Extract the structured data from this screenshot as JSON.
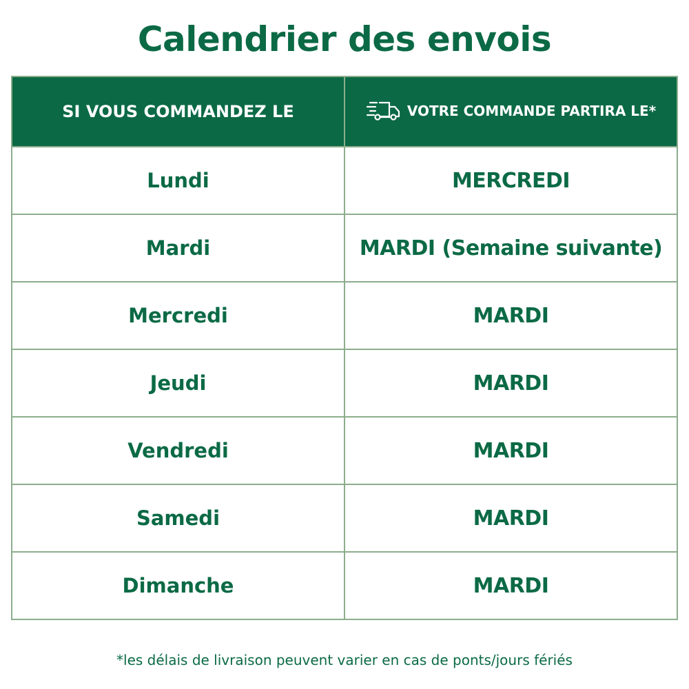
{
  "title": "Calendrier des envois",
  "header": {
    "col1": "SI VOUS COMMANDEZ LE",
    "col2": "VOTRE COMMANDE PARTIRA LE*",
    "col2_icon": "fast-truck-icon"
  },
  "rows": [
    {
      "order": "Lundi",
      "ship": "MERCREDI"
    },
    {
      "order": "Mardi",
      "ship": "MARDI (Semaine suivante)"
    },
    {
      "order": "Mercredi",
      "ship": "MARDI"
    },
    {
      "order": "Jeudi",
      "ship": "MARDI"
    },
    {
      "order": "Vendredi",
      "ship": "MARDI"
    },
    {
      "order": "Samedi",
      "ship": "MARDI"
    },
    {
      "order": "Dimanche",
      "ship": "MARDI"
    }
  ],
  "footnote": "*les délais de livraison peuvent varier en cas de ponts/jours fériés",
  "colors": {
    "brand_green": "#0b6a45",
    "border": "#8cad8c"
  }
}
